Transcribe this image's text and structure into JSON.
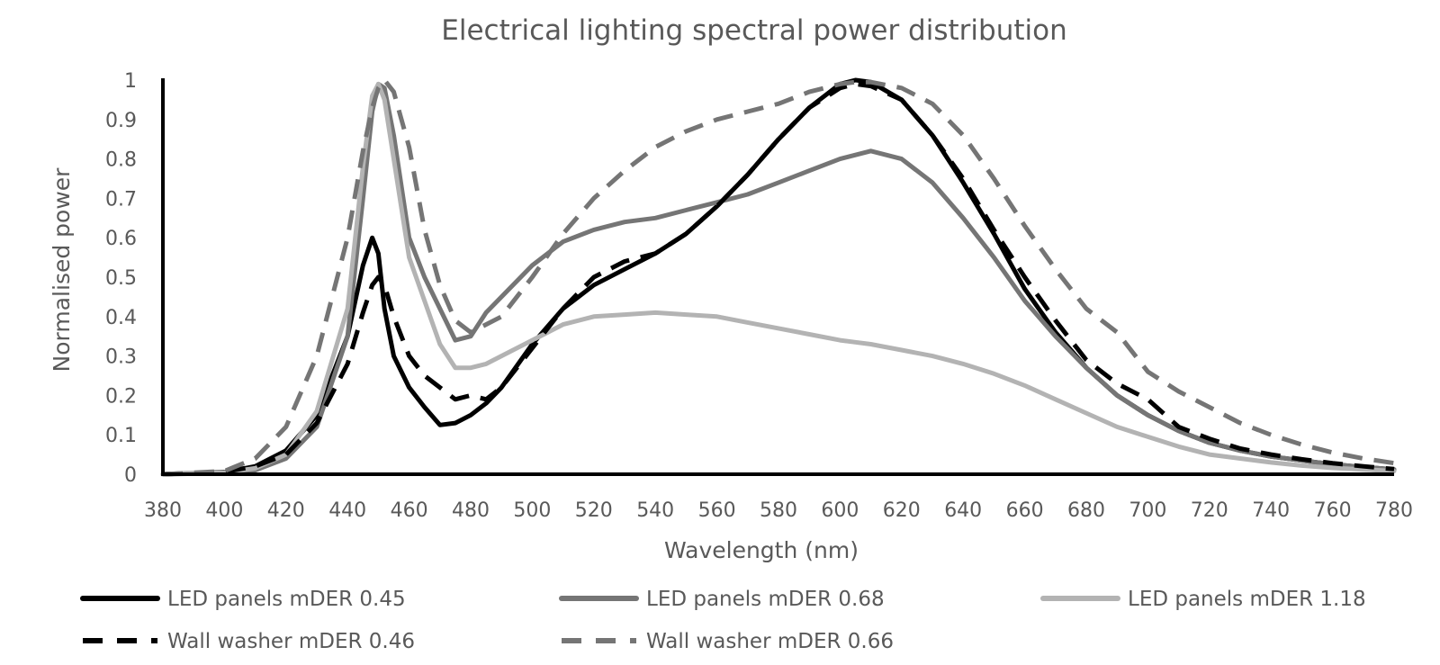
{
  "chart_data": {
    "type": "line",
    "title": "Electrical lighting spectral power distribution",
    "xlabel": "Wavelength (nm)",
    "ylabel": "Normalised power",
    "xlim": [
      380,
      780
    ],
    "ylim": [
      0,
      1
    ],
    "x_ticks": [
      "380",
      "400",
      "420",
      "440",
      "460",
      "480",
      "500",
      "520",
      "540",
      "560",
      "580",
      "600",
      "620",
      "640",
      "660",
      "680",
      "700",
      "720",
      "740",
      "760",
      "780"
    ],
    "y_ticks": [
      "0",
      "0.1",
      "0.2",
      "0.3",
      "0.4",
      "0.5",
      "0.6",
      "0.7",
      "0.8",
      "0.9",
      "1"
    ],
    "grid": false,
    "legend_position": "bottom",
    "x": [
      380,
      400,
      410,
      420,
      430,
      440,
      445,
      448,
      450,
      452,
      455,
      460,
      465,
      470,
      475,
      480,
      485,
      490,
      500,
      510,
      520,
      530,
      540,
      550,
      560,
      570,
      580,
      590,
      600,
      605,
      610,
      620,
      630,
      640,
      650,
      660,
      670,
      680,
      690,
      700,
      710,
      720,
      730,
      740,
      750,
      760,
      770,
      780
    ],
    "series": [
      {
        "name": "LED panels mDER 0.45",
        "color": "#000000",
        "dash": "solid",
        "values": [
          0,
          0.005,
          0.02,
          0.06,
          0.15,
          0.35,
          0.53,
          0.6,
          0.56,
          0.42,
          0.3,
          0.22,
          0.17,
          0.125,
          0.13,
          0.15,
          0.18,
          0.22,
          0.33,
          0.42,
          0.48,
          0.52,
          0.56,
          0.61,
          0.68,
          0.76,
          0.85,
          0.93,
          0.99,
          1.0,
          0.995,
          0.95,
          0.86,
          0.74,
          0.61,
          0.47,
          0.36,
          0.27,
          0.2,
          0.15,
          0.11,
          0.08,
          0.06,
          0.045,
          0.035,
          0.025,
          0.018,
          0.012
        ]
      },
      {
        "name": "LED panels mDER 0.68",
        "color": "#757575",
        "dash": "solid",
        "values": [
          0,
          0.003,
          0.01,
          0.04,
          0.12,
          0.35,
          0.7,
          0.92,
          0.99,
          0.98,
          0.86,
          0.6,
          0.5,
          0.42,
          0.34,
          0.35,
          0.41,
          0.45,
          0.53,
          0.59,
          0.62,
          0.64,
          0.65,
          0.67,
          0.69,
          0.71,
          0.74,
          0.77,
          0.8,
          0.81,
          0.82,
          0.8,
          0.74,
          0.65,
          0.55,
          0.44,
          0.35,
          0.27,
          0.2,
          0.15,
          0.11,
          0.08,
          0.06,
          0.045,
          0.035,
          0.025,
          0.018,
          0.012
        ]
      },
      {
        "name": "LED panels mDER 1.18",
        "color": "#b3b3b3",
        "dash": "solid",
        "values": [
          0,
          0.004,
          0.015,
          0.05,
          0.16,
          0.42,
          0.78,
          0.96,
          0.99,
          0.95,
          0.8,
          0.55,
          0.44,
          0.33,
          0.27,
          0.27,
          0.28,
          0.3,
          0.34,
          0.38,
          0.4,
          0.405,
          0.41,
          0.405,
          0.4,
          0.385,
          0.37,
          0.355,
          0.34,
          0.335,
          0.33,
          0.315,
          0.3,
          0.28,
          0.255,
          0.225,
          0.19,
          0.155,
          0.12,
          0.095,
          0.07,
          0.05,
          0.04,
          0.03,
          0.022,
          0.016,
          0.012,
          0.008
        ]
      },
      {
        "name": "Wall washer mDER 0.46",
        "color": "#000000",
        "dash": "dashed",
        "values": [
          0,
          0.006,
          0.02,
          0.05,
          0.13,
          0.28,
          0.41,
          0.48,
          0.5,
          0.48,
          0.4,
          0.3,
          0.25,
          0.22,
          0.19,
          0.2,
          0.19,
          0.22,
          0.32,
          0.42,
          0.5,
          0.54,
          0.56,
          0.61,
          0.68,
          0.76,
          0.85,
          0.93,
          0.98,
          0.99,
          0.985,
          0.95,
          0.86,
          0.75,
          0.62,
          0.5,
          0.39,
          0.29,
          0.23,
          0.19,
          0.12,
          0.09,
          0.065,
          0.05,
          0.038,
          0.028,
          0.02,
          0.013
        ]
      },
      {
        "name": "Wall washer mDER 0.66",
        "color": "#757575",
        "dash": "dashed",
        "values": [
          0,
          0.008,
          0.04,
          0.12,
          0.3,
          0.6,
          0.82,
          0.93,
          0.98,
          1.0,
          0.97,
          0.83,
          0.62,
          0.48,
          0.39,
          0.36,
          0.38,
          0.4,
          0.5,
          0.61,
          0.7,
          0.77,
          0.83,
          0.87,
          0.9,
          0.92,
          0.94,
          0.97,
          0.99,
          0.995,
          0.995,
          0.98,
          0.94,
          0.86,
          0.75,
          0.63,
          0.52,
          0.42,
          0.36,
          0.26,
          0.21,
          0.17,
          0.13,
          0.1,
          0.075,
          0.055,
          0.04,
          0.028
        ]
      }
    ]
  }
}
